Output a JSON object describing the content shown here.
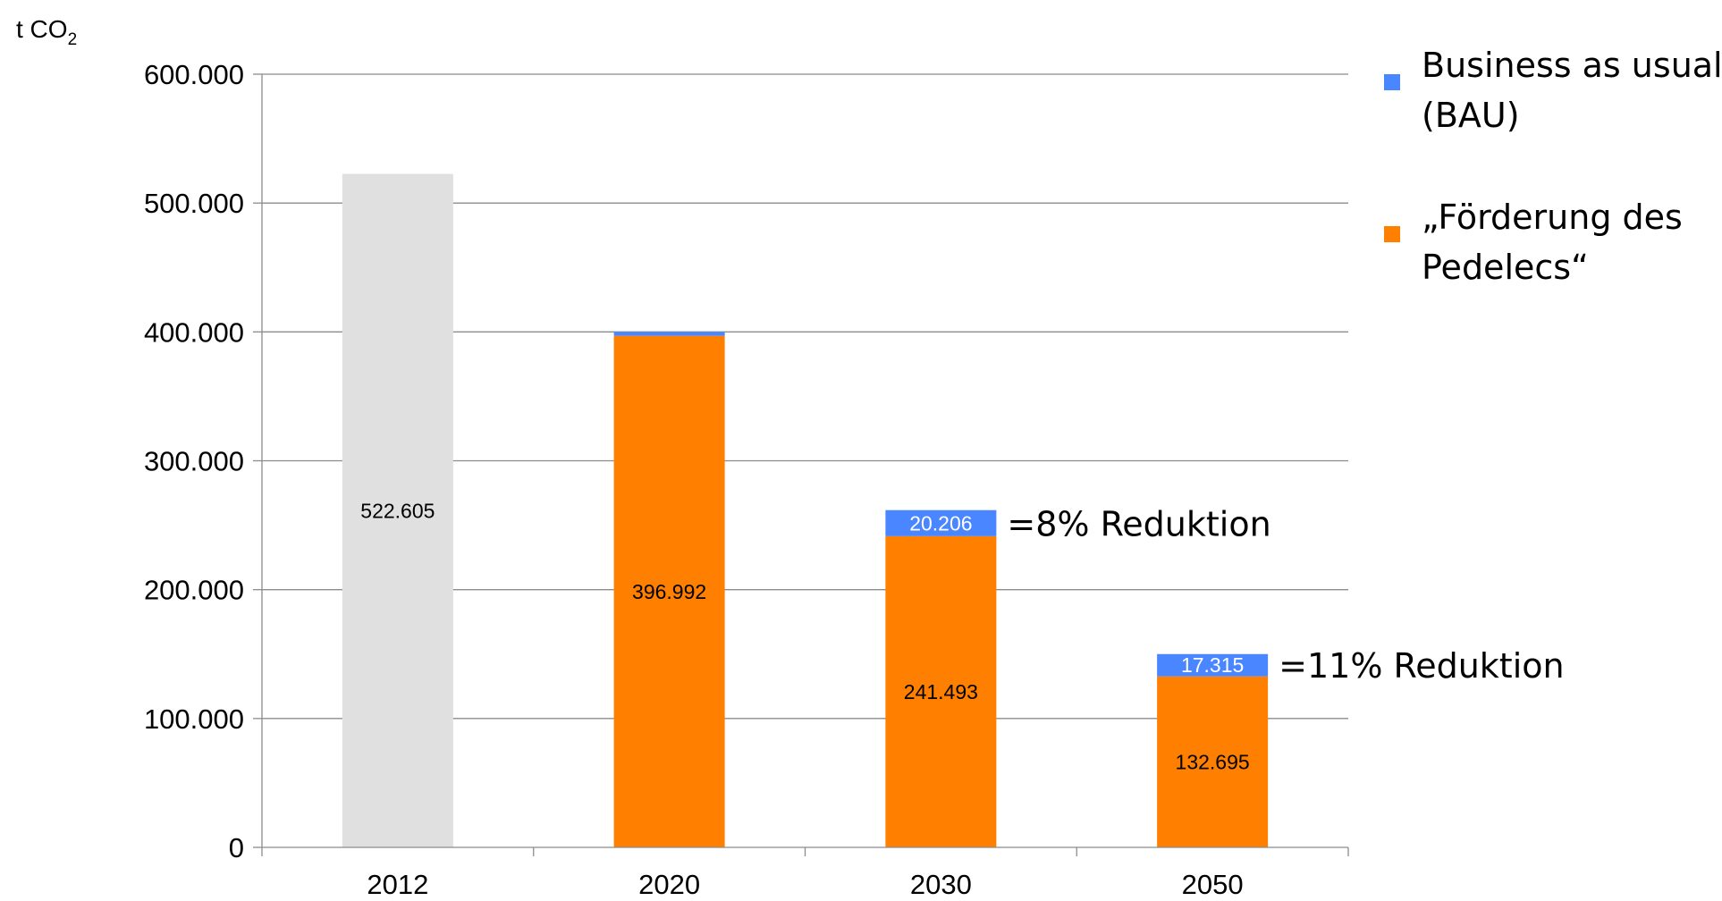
{
  "chart_data": {
    "type": "bar",
    "stacked": true,
    "ylabel": "t CO",
    "ylabel_subscript": "2",
    "categories": [
      "2012",
      "2020",
      "2030",
      "2050"
    ],
    "ylim": [
      0,
      600000
    ],
    "yticks": [
      0,
      100000,
      200000,
      300000,
      400000,
      500000,
      600000
    ],
    "ytick_labels": [
      "0",
      "100.000",
      "200.000",
      "300.000",
      "400.000",
      "500.000",
      "600.000"
    ],
    "grid": true,
    "legend_position": "top-right",
    "series": [
      {
        "name": "„Förderung des Pedelecs“",
        "legend_lines": [
          "„Förderung des",
          "Pedelecs“"
        ],
        "color": "#ff7f00",
        "values": [
          null,
          396992,
          241493,
          132695
        ],
        "labels": [
          "",
          "396.992",
          "241.493",
          "132.695"
        ]
      },
      {
        "name": "Business as usual (BAU)",
        "legend_lines": [
          "Business as usual",
          "(BAU)"
        ],
        "color": "#4a86ff",
        "values": [
          null,
          3000,
          20206,
          17315
        ],
        "labels": [
          "",
          "",
          "20.206",
          "17.315"
        ]
      }
    ],
    "baseline": {
      "category": "2012",
      "value": 522605,
      "label": "522.605",
      "color": "#e0e0e0"
    },
    "annotations": [
      {
        "category": "2030",
        "text": "=8% Reduktion"
      },
      {
        "category": "2050",
        "text": "=11% Reduktion"
      }
    ]
  }
}
